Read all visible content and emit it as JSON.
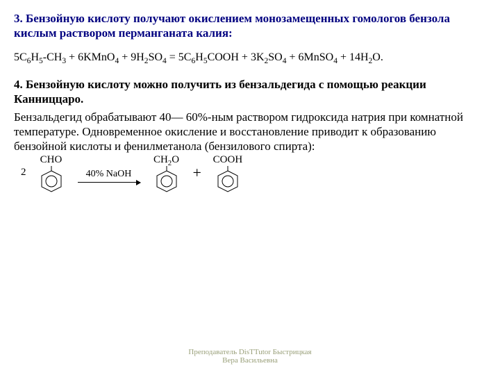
{
  "section3": {
    "heading": "3. Бензойную кислоту получают окислением монозамещенных гомологов бензола кислым раствором перманганата калия:",
    "equation_html": "5C<sub>6</sub>H<sub>5</sub>-CH<sub>3</sub> + 6KMnO<sub>4</sub> + 9H<sub>2</sub>SO<sub>4</sub> = 5C<sub>6</sub>H<sub>5</sub>COOH + 3K<sub>2</sub>SO<sub>4</sub> + 6MnSO<sub>4</sub> + 14H<sub>2</sub>O."
  },
  "section4": {
    "heading": "4. Бензойную кислоту можно получить из бензальдегида с помощью реакции Канниццаро.",
    "body": "Бензальдегид обрабатывают 40— 60%-ным раствором гидроксида натрия при комнатной температуре. Одновременное окисление и восстановление приводит к образованию бензойной кислоты и фенилметанола (бензилового спирта):",
    "reaction": {
      "coefficient": "2",
      "reagent_group": "CHO",
      "arrow_label": "40% NaOH",
      "product1_group_html": "CH<sub>2</sub>O",
      "product2_group": "COOH",
      "plus": "+"
    }
  },
  "footer": {
    "line1": "Преподаватель DisTTutor Быстрицкая",
    "line2": "Вера Васильевна"
  },
  "style": {
    "heading_color": "#000080",
    "text_color": "#000000",
    "footer_color": "#9aa07a",
    "bg": "#ffffff"
  }
}
